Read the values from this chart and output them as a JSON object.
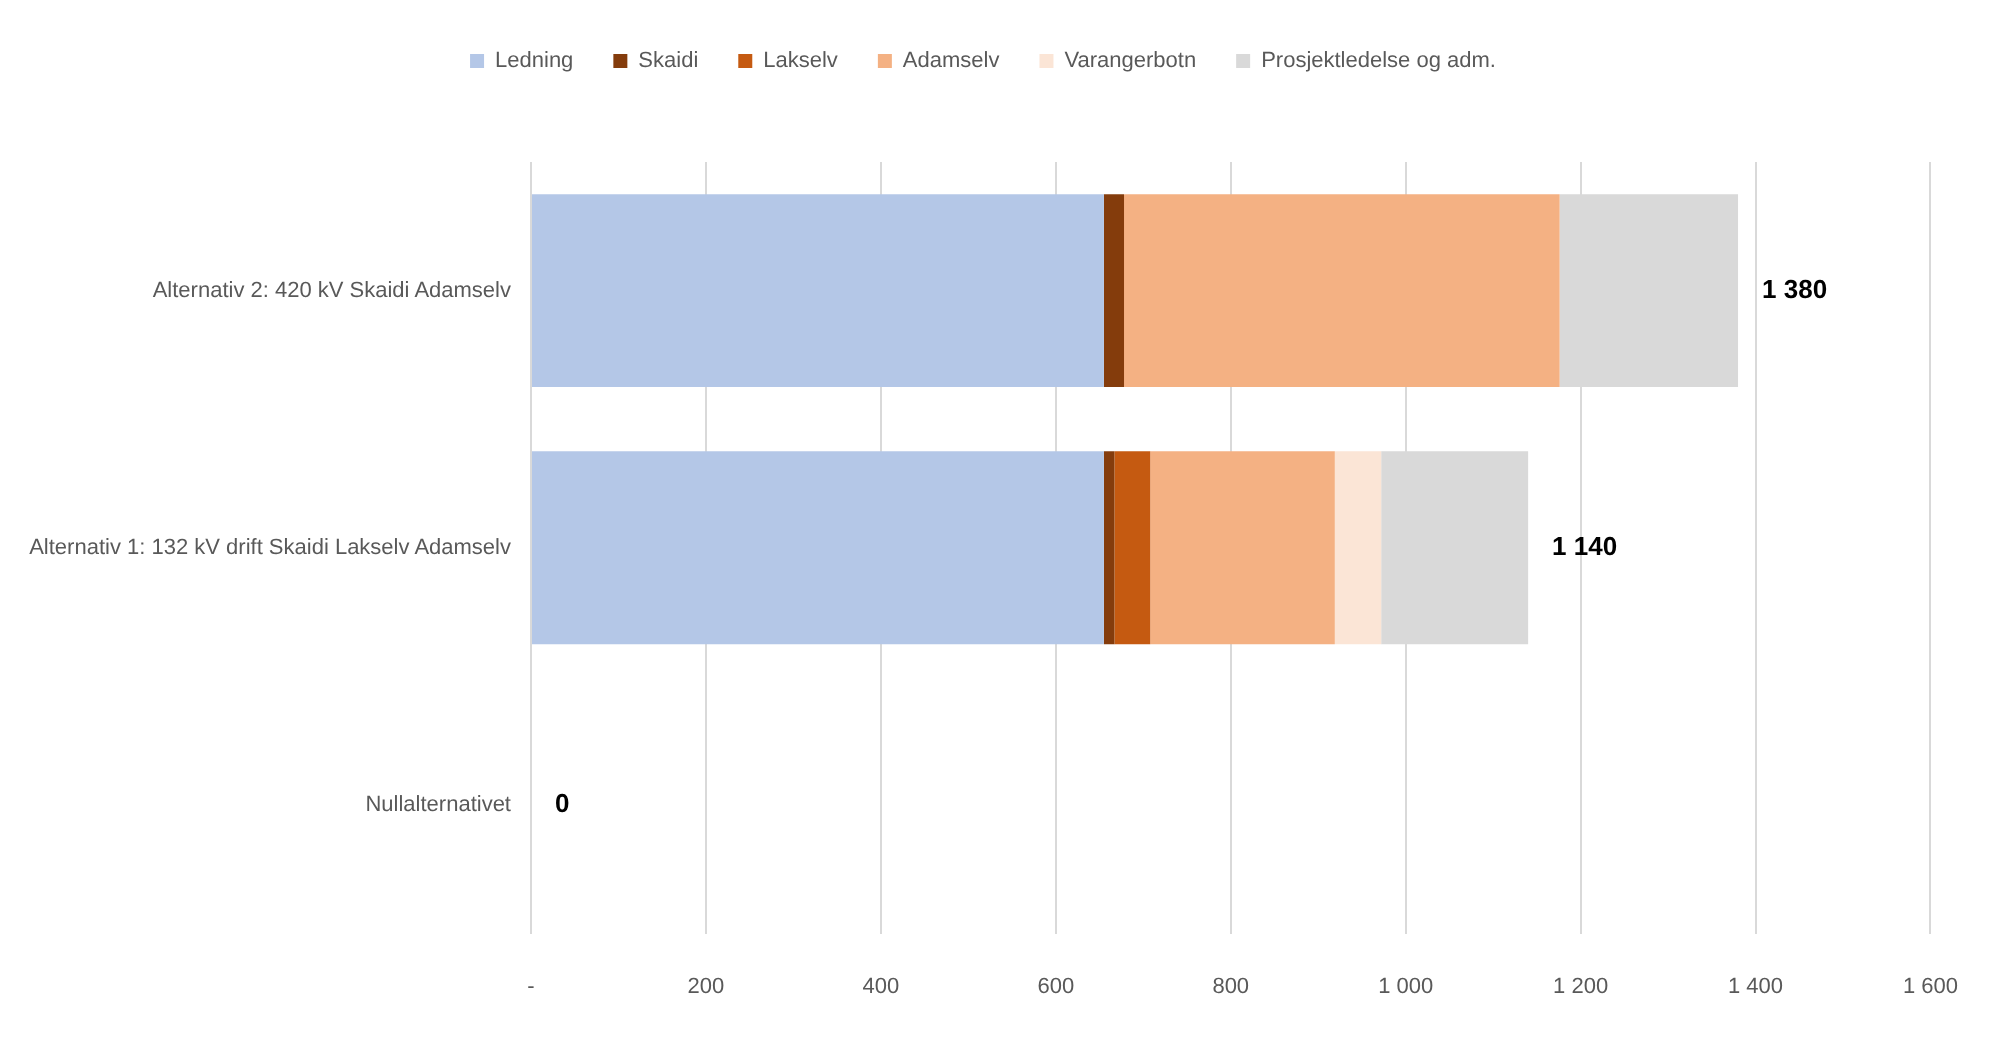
{
  "chart_data": {
    "type": "bar",
    "orientation": "horizontal",
    "stacked": true,
    "categories": [
      "Alternativ 2: 420 kV Skaidi Adamselv",
      "Alternativ 1: 132 kV drift Skaidi Lakselv Adamselv",
      "Nullalternativet"
    ],
    "series": [
      {
        "name": "Ledning",
        "color": "#b4c7e7",
        "values": [
          655,
          655,
          0
        ]
      },
      {
        "name": "Skaidi",
        "color": "#843c0c",
        "values": [
          23,
          12,
          0
        ]
      },
      {
        "name": "Lakselv",
        "color": "#c55a11",
        "values": [
          0,
          41,
          0
        ]
      },
      {
        "name": "Adamselv",
        "color": "#f4b183",
        "values": [
          498,
          211,
          0
        ]
      },
      {
        "name": "Varangerbotn",
        "color": "#fbe5d6",
        "values": [
          0,
          53,
          0
        ]
      },
      {
        "name": "Prosjektledelse og adm.",
        "color": "#d9d9d9",
        "values": [
          204,
          168,
          0
        ]
      }
    ],
    "totals": [
      "1 380",
      "1 140",
      "0"
    ],
    "xlim": [
      0,
      1600
    ],
    "xticks": [
      {
        "value": 0,
        "label": "-"
      },
      200,
      400,
      600,
      800,
      {
        "value": 1000,
        "label": "1 000"
      },
      {
        "value": 1200,
        "label": "1 200"
      },
      {
        "value": 1400,
        "label": "1 400"
      },
      {
        "value": 1600,
        "label": "1 600"
      }
    ],
    "grid": "x",
    "legend": "top"
  }
}
